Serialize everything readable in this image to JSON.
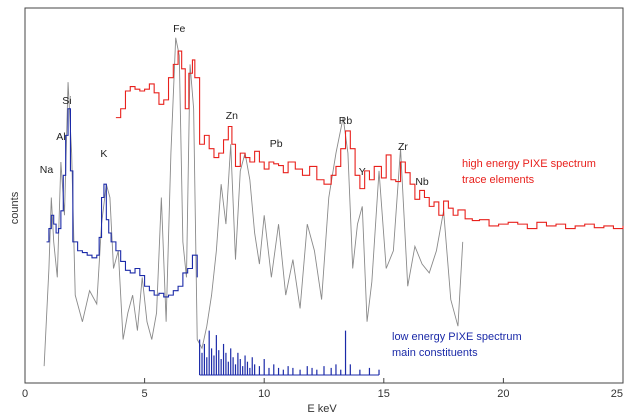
{
  "chart_data": {
    "type": "line",
    "title": "",
    "xlabel": "E keV",
    "ylabel": "counts",
    "xlim": [
      0,
      25
    ],
    "xticks": [
      0,
      5,
      10,
      15,
      20,
      25
    ],
    "grid": false,
    "axes_frame": "box",
    "series": [
      {
        "name": "high energy PIXE spectrum trace elements",
        "color": "#e8201c",
        "style": "step",
        "x": [
          3.8,
          4.0,
          4.2,
          4.4,
          4.6,
          4.8,
          5.0,
          5.2,
          5.4,
          5.6,
          5.8,
          6.0,
          6.2,
          6.4,
          6.55,
          6.7,
          6.85,
          7.0,
          7.1,
          7.3,
          7.5,
          7.7,
          7.9,
          8.1,
          8.3,
          8.5,
          8.65,
          8.8,
          9.0,
          9.2,
          9.4,
          9.6,
          9.8,
          10.0,
          10.2,
          10.4,
          10.6,
          10.8,
          11.0,
          11.3,
          11.6,
          11.9,
          12.2,
          12.5,
          12.8,
          13.0,
          13.2,
          13.4,
          13.6,
          13.8,
          14.0,
          14.2,
          14.4,
          14.6,
          14.9,
          15.1,
          15.3,
          15.5,
          15.7,
          15.9,
          16.1,
          16.3,
          16.5,
          16.7,
          16.9,
          17.1,
          17.3,
          17.5,
          17.7,
          17.9,
          18.1,
          18.4,
          18.7,
          19.0,
          19.4,
          19.8,
          20.2,
          20.6,
          21.0,
          21.4,
          21.8,
          22.2,
          22.6,
          23.0,
          23.4,
          23.8,
          24.2,
          24.6,
          25.0
        ],
        "y": [
          290,
          300,
          320,
          325,
          322,
          320,
          322,
          328,
          318,
          305,
          310,
          335,
          350,
          365,
          345,
          300,
          340,
          355,
          335,
          260,
          270,
          255,
          245,
          250,
          265,
          280,
          260,
          235,
          250,
          245,
          240,
          252,
          240,
          232,
          240,
          238,
          236,
          228,
          240,
          232,
          225,
          235,
          220,
          215,
          225,
          235,
          255,
          275,
          255,
          225,
          210,
          230,
          220,
          235,
          222,
          248,
          220,
          218,
          240,
          228,
          215,
          198,
          208,
          200,
          190,
          195,
          180,
          196,
          188,
          180,
          186,
          176,
          174,
          175,
          168,
          170,
          172,
          170,
          165,
          172,
          168,
          170,
          165,
          168,
          170,
          166,
          168,
          165,
          168
        ]
      },
      {
        "name": "low energy PIXE spectrum main constituents",
        "color": "#1b2aa8",
        "style": "step",
        "x": [
          0.9,
          1.0,
          1.1,
          1.2,
          1.3,
          1.4,
          1.5,
          1.6,
          1.7,
          1.8,
          1.9,
          2.0,
          2.2,
          2.4,
          2.6,
          2.8,
          3.0,
          3.1,
          3.2,
          3.3,
          3.4,
          3.5,
          3.6,
          3.8,
          4.0,
          4.2,
          4.4,
          4.6,
          4.8,
          5.0,
          5.2,
          5.4,
          5.6,
          5.8,
          6.0,
          6.2,
          6.4,
          6.6,
          6.8,
          7.0,
          7.2
        ],
        "y": [
          150,
          165,
          180,
          170,
          160,
          165,
          185,
          225,
          270,
          300,
          230,
          150,
          140,
          138,
          135,
          132,
          135,
          155,
          200,
          215,
          175,
          160,
          150,
          140,
          128,
          118,
          115,
          120,
          112,
          100,
          95,
          90,
          92,
          88,
          90,
          95,
          100,
          115,
          120,
          135,
          110
        ]
      },
      {
        "name": "",
        "color": "#8a8a8a",
        "style": "line",
        "x": [
          0.8,
          1.0,
          1.1,
          1.2,
          1.35,
          1.5,
          1.65,
          1.8,
          1.95,
          2.1,
          2.4,
          2.7,
          3.0,
          3.2,
          3.4,
          3.55,
          3.7,
          3.9,
          4.1,
          4.3,
          4.5,
          4.7,
          4.9,
          5.1,
          5.3,
          5.5,
          5.7,
          5.9,
          6.1,
          6.3,
          6.45,
          6.6,
          6.75,
          6.9,
          7.05,
          7.2,
          7.4,
          7.6,
          7.8,
          8.0,
          8.2,
          8.4,
          8.6,
          8.8,
          9.0,
          9.2,
          9.4,
          9.6,
          9.8,
          10.0,
          10.3,
          10.6,
          10.9,
          11.2,
          11.5,
          11.8,
          12.1,
          12.4,
          12.7,
          13.0,
          13.3,
          13.5,
          13.7,
          13.9,
          14.1,
          14.3,
          14.5,
          14.8,
          15.1,
          15.4,
          15.7,
          16.0,
          16.3,
          16.6,
          16.9,
          17.2,
          17.5,
          17.8,
          18.1,
          18.3
        ],
        "y": [
          10,
          120,
          200,
          150,
          110,
          240,
          180,
          330,
          250,
          90,
          60,
          95,
          80,
          170,
          215,
          200,
          120,
          140,
          40,
          70,
          90,
          50,
          110,
          60,
          40,
          70,
          200,
          60,
          250,
          380,
          360,
          150,
          110,
          350,
          300,
          40,
          30,
          55,
          90,
          140,
          215,
          170,
          260,
          130,
          230,
          250,
          220,
          160,
          125,
          180,
          110,
          170,
          90,
          130,
          75,
          170,
          140,
          85,
          200,
          250,
          290,
          250,
          120,
          170,
          190,
          60,
          105,
          230,
          120,
          140,
          255,
          100,
          145,
          125,
          115,
          140,
          185,
          85,
          55,
          150
        ]
      },
      {
        "name": "",
        "color": "#1b2aa8",
        "style": "bars",
        "x": [
          7.3,
          7.4,
          7.5,
          7.6,
          7.7,
          7.8,
          7.9,
          8.0,
          8.1,
          8.2,
          8.3,
          8.4,
          8.5,
          8.6,
          8.7,
          8.8,
          8.9,
          9.0,
          9.1,
          9.2,
          9.3,
          9.4,
          9.5,
          9.6,
          9.8,
          10.0,
          10.2,
          10.4,
          10.6,
          10.8,
          11.0,
          11.2,
          11.5,
          11.8,
          12.0,
          12.2,
          12.5,
          12.8,
          13.0,
          13.2,
          13.4,
          13.6,
          14.0,
          14.4,
          14.8
        ],
        "y": [
          40,
          25,
          35,
          20,
          50,
          30,
          22,
          45,
          28,
          18,
          35,
          25,
          15,
          30,
          20,
          12,
          25,
          18,
          10,
          22,
          15,
          8,
          20,
          12,
          10,
          18,
          8,
          12,
          8,
          6,
          10,
          8,
          6,
          10,
          8,
          6,
          10,
          8,
          12,
          6,
          50,
          12,
          6,
          8,
          6
        ]
      }
    ],
    "annotations": [
      {
        "label": "Na",
        "x": 0.9
      },
      {
        "label": "Al",
        "x": 1.5
      },
      {
        "label": "Si",
        "x": 1.75
      },
      {
        "label": "K",
        "x": 3.3
      },
      {
        "label": "Fe",
        "x": 6.45
      },
      {
        "label": "Zn",
        "x": 8.65
      },
      {
        "label": "Pb",
        "x": 10.5
      },
      {
        "label": "Rb",
        "x": 13.4
      },
      {
        "label": "Y",
        "x": 14.1
      },
      {
        "label": "Zr",
        "x": 15.8
      },
      {
        "label": "Nb",
        "x": 16.6
      }
    ],
    "legend_texts": {
      "high_line1": "high energy PIXE spectrum",
      "high_line2": "trace elements",
      "low_line1": "low energy PIXE spectrum",
      "low_line2": "main constituents"
    }
  }
}
